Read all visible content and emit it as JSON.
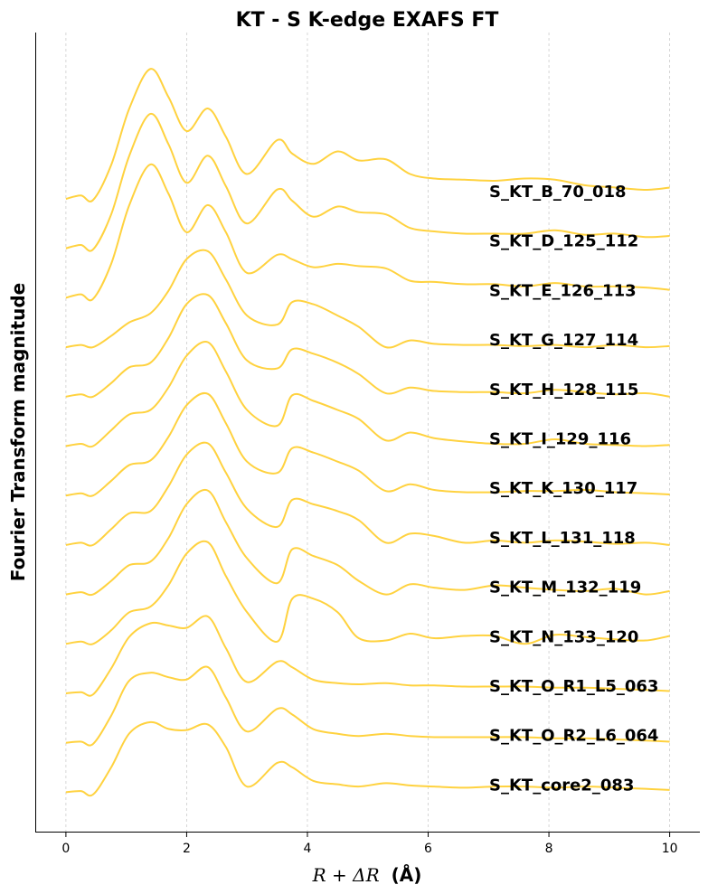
{
  "chart_data": {
    "type": "line",
    "title": "KT - S K-edge EXAFS FT",
    "xlabel_math": "R + ΔR",
    "xlabel_unit": "(Å)",
    "ylabel": "Fourier Transform magnitude",
    "xlim": [
      -0.5,
      10.5
    ],
    "xticks": [
      0,
      2,
      4,
      6,
      8,
      10
    ],
    "grid": "vertical dashed",
    "line_color": "#FFD23F",
    "offset_stacked": true,
    "x": [
      0,
      0.25,
      0.45,
      0.75,
      1.05,
      1.4,
      1.7,
      2.0,
      2.35,
      2.65,
      3.0,
      3.5,
      3.75,
      4.1,
      4.5,
      4.85,
      5.3,
      5.7,
      6.1,
      6.6,
      7.1,
      7.6,
      8.1,
      8.6,
      9.1,
      9.6,
      10.0
    ],
    "series": [
      {
        "name": "S_KT_B_70_018",
        "values": [
          0.0,
          0.03,
          -0.01,
          0.3,
          0.8,
          1.15,
          0.9,
          0.6,
          0.8,
          0.55,
          0.22,
          0.52,
          0.4,
          0.31,
          0.42,
          0.34,
          0.35,
          0.22,
          0.18,
          0.17,
          0.16,
          0.18,
          0.17,
          0.12,
          0.1,
          0.08,
          0.1
        ]
      },
      {
        "name": "S_KT_D_125_112",
        "values": [
          0.0,
          0.03,
          -0.01,
          0.3,
          0.82,
          1.19,
          0.92,
          0.58,
          0.82,
          0.55,
          0.22,
          0.52,
          0.42,
          0.28,
          0.37,
          0.32,
          0.3,
          0.18,
          0.15,
          0.13,
          0.13,
          0.13,
          0.16,
          0.12,
          0.13,
          0.1,
          0.11
        ]
      },
      {
        "name": "S_KT_E_126_113",
        "values": [
          0.0,
          0.03,
          -0.01,
          0.3,
          0.82,
          1.18,
          0.92,
          0.58,
          0.82,
          0.58,
          0.22,
          0.38,
          0.34,
          0.27,
          0.3,
          0.28,
          0.26,
          0.15,
          0.14,
          0.12,
          0.12,
          0.1,
          0.13,
          0.1,
          0.1,
          0.09,
          0.07
        ]
      },
      {
        "name": "S_KT_G_127_114",
        "values": [
          0.0,
          0.02,
          0.0,
          0.1,
          0.22,
          0.3,
          0.5,
          0.78,
          0.85,
          0.6,
          0.28,
          0.2,
          0.4,
          0.38,
          0.28,
          0.18,
          0.0,
          0.06,
          0.03,
          0.02,
          0.02,
          0.01,
          0.02,
          0.0,
          0.02,
          0.0,
          0.01
        ]
      },
      {
        "name": "S_KT_H_128_115",
        "values": [
          0.0,
          0.02,
          0.0,
          0.12,
          0.26,
          0.3,
          0.52,
          0.82,
          0.9,
          0.65,
          0.32,
          0.25,
          0.42,
          0.38,
          0.3,
          0.2,
          0.03,
          0.08,
          0.05,
          0.04,
          0.04,
          0.03,
          0.06,
          0.04,
          0.02,
          0.03,
          0.0
        ]
      },
      {
        "name": "S_KT_I_129_116",
        "values": [
          0.0,
          0.02,
          0.0,
          0.14,
          0.28,
          0.32,
          0.52,
          0.8,
          0.92,
          0.66,
          0.32,
          0.18,
          0.45,
          0.4,
          0.32,
          0.24,
          0.05,
          0.12,
          0.07,
          0.04,
          0.02,
          0.02,
          0.06,
          0.02,
          0.01,
          0.0,
          0.01
        ]
      },
      {
        "name": "S_KT_K_130_117",
        "values": [
          0.0,
          0.02,
          0.0,
          0.13,
          0.27,
          0.31,
          0.52,
          0.8,
          0.9,
          0.64,
          0.3,
          0.2,
          0.42,
          0.38,
          0.3,
          0.22,
          0.04,
          0.1,
          0.05,
          0.03,
          0.03,
          0.04,
          0.04,
          0.05,
          0.03,
          0.02,
          0.01
        ]
      },
      {
        "name": "S_KT_L_131_118",
        "values": [
          0.0,
          0.02,
          0.0,
          0.14,
          0.28,
          0.3,
          0.52,
          0.8,
          0.9,
          0.64,
          0.32,
          0.16,
          0.4,
          0.36,
          0.3,
          0.22,
          0.02,
          0.1,
          0.08,
          0.02,
          0.04,
          0.02,
          0.04,
          0.03,
          0.01,
          0.02,
          0.0
        ]
      },
      {
        "name": "S_KT_M_132_119",
        "values": [
          0.0,
          0.02,
          0.0,
          0.12,
          0.26,
          0.29,
          0.5,
          0.8,
          0.92,
          0.64,
          0.32,
          0.1,
          0.4,
          0.34,
          0.26,
          0.12,
          0.0,
          0.09,
          0.06,
          0.04,
          0.08,
          0.06,
          0.04,
          0.03,
          0.05,
          0.0,
          0.03
        ]
      },
      {
        "name": "S_KT_N_133_120",
        "values": [
          0.0,
          0.02,
          0.0,
          0.12,
          0.28,
          0.33,
          0.52,
          0.8,
          0.9,
          0.6,
          0.28,
          0.02,
          0.4,
          0.4,
          0.28,
          0.05,
          0.03,
          0.09,
          0.05,
          0.07,
          0.07,
          0.0,
          0.08,
          0.06,
          0.04,
          0.03,
          0.07
        ]
      },
      {
        "name": "S_KT_O_R1_L5_063",
        "values": [
          0.0,
          0.01,
          -0.01,
          0.22,
          0.5,
          0.62,
          0.6,
          0.58,
          0.68,
          0.4,
          0.1,
          0.28,
          0.23,
          0.12,
          0.09,
          0.08,
          0.09,
          0.07,
          0.07,
          0.06,
          0.06,
          0.06,
          0.05,
          0.05,
          0.04,
          0.03,
          0.02
        ]
      },
      {
        "name": "S_KT_O_R2_L6_064",
        "values": [
          0.0,
          0.01,
          -0.01,
          0.24,
          0.55,
          0.62,
          0.58,
          0.56,
          0.67,
          0.4,
          0.1,
          0.3,
          0.25,
          0.12,
          0.08,
          0.06,
          0.08,
          0.06,
          0.05,
          0.05,
          0.05,
          0.05,
          0.04,
          0.04,
          0.03,
          0.02,
          0.01
        ]
      },
      {
        "name": "S_KT_core2_083",
        "values": [
          0.0,
          0.01,
          -0.02,
          0.22,
          0.52,
          0.62,
          0.56,
          0.55,
          0.6,
          0.4,
          0.05,
          0.26,
          0.22,
          0.1,
          0.07,
          0.05,
          0.08,
          0.06,
          0.05,
          0.04,
          0.05,
          0.05,
          0.04,
          0.05,
          0.04,
          0.03,
          0.02
        ]
      }
    ]
  }
}
